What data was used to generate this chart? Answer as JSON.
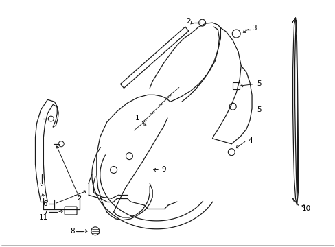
{
  "bg_color": "#ffffff",
  "line_color": "#1a1a1a",
  "lw": 0.9,
  "fig_width": 4.89,
  "fig_height": 3.6,
  "dpi": 100,
  "fs": 7.5
}
